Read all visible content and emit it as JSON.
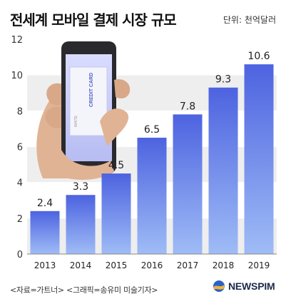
{
  "header": {
    "title": "전세계 모바일 결제 시장 규모",
    "unit": "단위: 천억달러"
  },
  "colors": {
    "bar_top": "#4d63e0",
    "bar_bottom": "#9fbcf6",
    "grid_band": "#eeeeee",
    "text": "#222222"
  },
  "chart_data": {
    "type": "bar",
    "title": "전세계 모바일 결제 시장 규모",
    "unit": "단위: 천억달러",
    "categories": [
      "2013",
      "2014",
      "2015",
      "2016",
      "2017",
      "2018",
      "2019"
    ],
    "values": [
      2.4,
      3.3,
      4.5,
      6.5,
      7.8,
      9.3,
      10.6
    ],
    "value_labels": [
      "2.4",
      "3.3",
      "4.5",
      "6.5",
      "7.8",
      "9.3",
      "10.6"
    ],
    "y_ticks": [
      "0",
      "2",
      "4",
      "6",
      "8",
      "10",
      "12"
    ],
    "ylim": [
      0,
      12
    ],
    "grid": true,
    "legend": "none"
  },
  "footer": {
    "source": "<자료=가트너> <그래픽=송유미 미술기자>",
    "logo_text": "NEWSPIM",
    "logo_icon": "newspim-globe-icon"
  },
  "illustration": {
    "name": "hand-holding-phone-illustration",
    "card_text": "CREDIT CARD",
    "card_small_text": "WHITE"
  }
}
